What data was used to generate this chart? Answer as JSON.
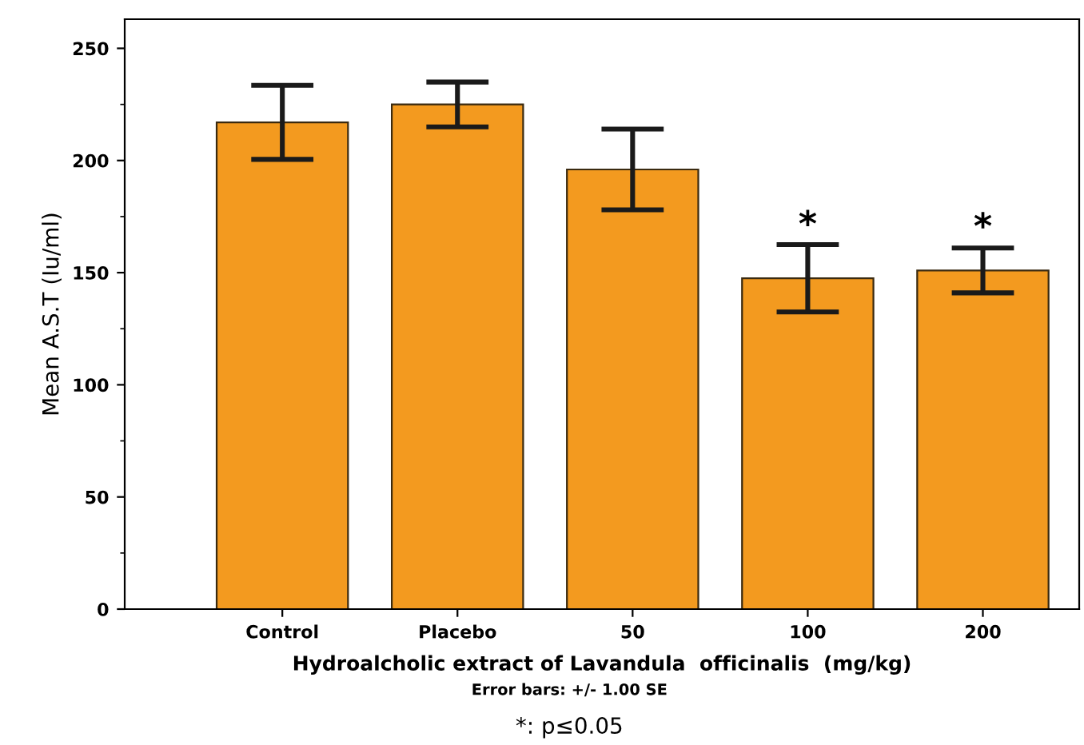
{
  "chart_data": {
    "type": "bar",
    "xlabel": "Hydroalcholic extract of Lavandula  officinalis  (mg/kg)",
    "ylabel": "Mean A.S.T (Iu/ml)",
    "categories": [
      "Control",
      "Placebo",
      "50",
      "100",
      "200"
    ],
    "values": [
      217,
      225,
      196,
      147.5,
      151
    ],
    "errors": [
      16.5,
      10,
      18,
      15,
      10
    ],
    "color": "#f39a1f",
    "ylim": [
      0,
      263
    ],
    "yticks": [
      0,
      50,
      100,
      150,
      200,
      250
    ],
    "grid": false,
    "annotations": [
      {
        "text": "*",
        "x": "100",
        "y": 162
      },
      {
        "text": "*",
        "x": "200",
        "y": 161
      },
      "Error bars: +/- 1.00 SE",
      "*: p≤0.05"
    ]
  }
}
